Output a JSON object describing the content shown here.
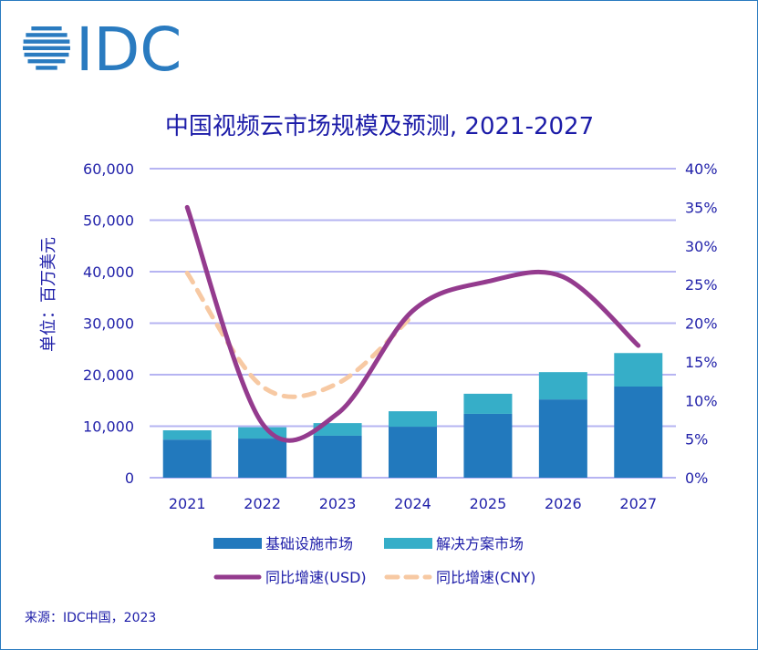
{
  "logo_text": "IDC",
  "chart_data": {
    "type": "bar+line",
    "title": "中国视频云市场规模及预测, 2021-2027",
    "ylabel": "单位：百万美元",
    "categories": [
      "2021",
      "2022",
      "2023",
      "2024",
      "2025",
      "2026",
      "2027"
    ],
    "ylim": [
      0,
      60000
    ],
    "yticks": [
      "0",
      "10,000",
      "20,000",
      "30,000",
      "40,000",
      "50,000",
      "60,000"
    ],
    "y2lim": [
      0,
      40
    ],
    "y2ticks": [
      "0%",
      "5%",
      "10%",
      "15%",
      "20%",
      "25%",
      "30%",
      "35%",
      "40%"
    ],
    "grid": true,
    "legend_position": "bottom",
    "bar_series": [
      {
        "name": "基础设施市场",
        "color": "#2279bd",
        "values": [
          7400,
          7600,
          8150,
          9900,
          12400,
          15200,
          17700
        ]
      },
      {
        "name": "解决方案市场",
        "color": "#36aec8",
        "values": [
          1800,
          2200,
          2450,
          3000,
          3900,
          5300,
          6500
        ]
      }
    ],
    "line_series": [
      {
        "name": "同比增速(USD)",
        "color": "#943b8e",
        "dashed": false,
        "values": [
          35,
          7,
          8.3,
          21.6,
          25.4,
          26,
          17.1
        ]
      },
      {
        "name": "同比增速(CNY)",
        "color": "#f7c9a3",
        "dashed": true,
        "values": [
          26.5,
          11.8,
          12.2,
          21,
          null,
          null,
          null
        ]
      }
    ]
  },
  "source": "来源：IDC中国，2023"
}
